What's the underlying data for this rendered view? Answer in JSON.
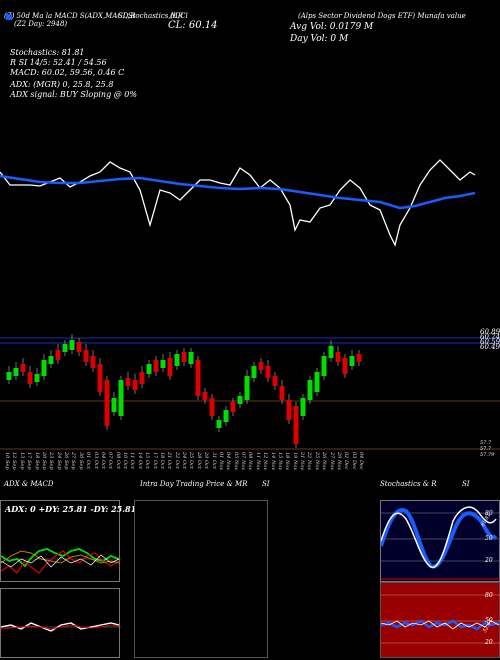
{
  "header": {
    "line1_left": "(Z) 50d Ma la MACD S(ADX,MACD,B",
    "line1_mid": "SI,Stochastics,MR",
    "line1_cl": "(L)Cl",
    "line1_right": "(Alps Sector Dividend Dogs ETF) Munafa value",
    "line2_left": "(Z2 Day: 2948)",
    "line2_cl": "CL: 60.14",
    "line2_vol": "Avg Vol: 0.0179 M",
    "line3_vol": "Day Vol: 0   M",
    "stoch": "Stochastics: 81.81",
    "rsi_line": "R                          SI 14/5: 52.41 / 54.56",
    "macd_line": "MACD: 60.02, 59.56, 0.46  C",
    "adx_line": "ADX:                         (MGR) 0, 25.8, 25.8",
    "adx_signal": "ADX  signal:                        BUY Sloping @ 0%"
  },
  "price_labels": {
    "p1": "60.89",
    "p2": "60.74",
    "p3": "60.59",
    "p4": "60.49",
    "p5": "57.7",
    "p6": "57.7",
    "p7": "57.79"
  },
  "dates": [
    "10 Sep",
    "12 Sep",
    "13 Sep",
    "17 Sep",
    "18 Sep",
    "20 Sep",
    "23 Sep",
    "24 Sep",
    "26 Sep",
    "27 Sep",
    "30 Sep",
    "01 Oct",
    "03 Oct",
    "04 Oct",
    "07 Oct",
    "08 Oct",
    "10 Oct",
    "11 Oct",
    "14 Oct",
    "15 Oct",
    "17 Oct",
    "18 Oct",
    "21 Oct",
    "22 Oct",
    "24 Oct",
    "25 Oct",
    "28 Oct",
    "29 Oct",
    "31 Oct",
    "01 Nov",
    "04 Nov",
    "05 Nov",
    "07 Nov",
    "08 Nov",
    "11 Nov",
    "12 Nov",
    "14 Nov",
    "15 Nov",
    "18 Nov",
    "19 Nov",
    "21 Nov",
    "22 Nov",
    "25 Nov",
    "26 Nov",
    "27 Nov",
    "29 Nov",
    "02 Dec",
    "03 Dec",
    "04 Dec"
  ],
  "panels": {
    "adx_title": "ADX  & MACD",
    "adx_values": "ADX: 0   +DY: 25.81  -DY: 25.81",
    "intraday_title": "Intra  Day Trading Price  & MR",
    "intraday_si": "SI",
    "stoch_title": "Stochastics & R",
    "stoch_si": "SI",
    "stoch_levels": [
      "80",
      "50",
      "20"
    ],
    "rsi_levels": [
      "80",
      "50",
      "20"
    ],
    "stoch_annot": "81.81",
    "rsi_annot": "52.41"
  },
  "colors": {
    "up": "#00dd00",
    "down": "#dd0000",
    "ma": "#1a5cff",
    "rsi_bg": "#990000"
  }
}
